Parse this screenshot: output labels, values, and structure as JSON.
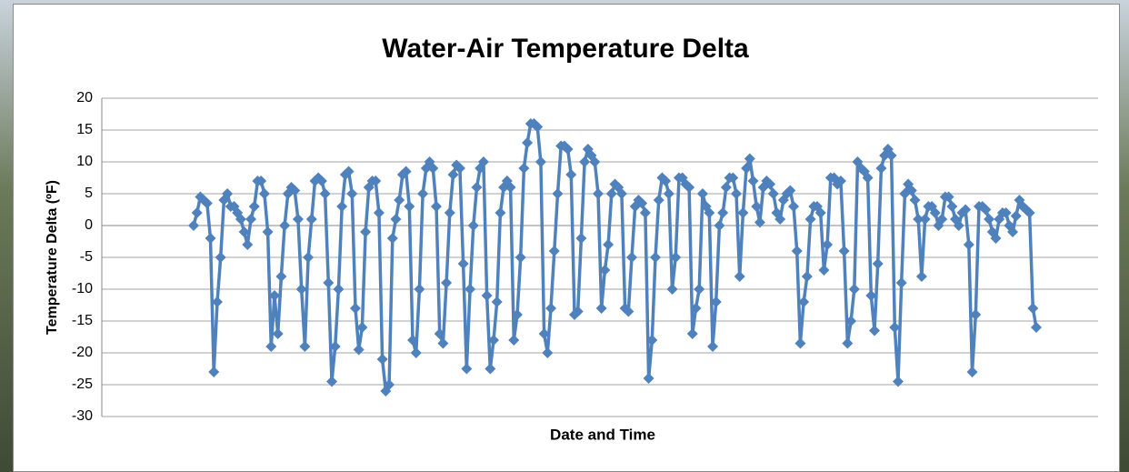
{
  "chart_data": {
    "type": "line",
    "title": "Water-Air Temperature Delta",
    "y_label": "Temperature Delta (ºF)",
    "x_label": "Date and Time",
    "color": "#4f81bd",
    "grid": true,
    "markers": "diamond",
    "ylim": [
      -30,
      20
    ],
    "yticks": [
      20,
      15,
      10,
      5,
      0,
      -5,
      -10,
      -15,
      -20,
      -25,
      -30
    ],
    "values": [
      0,
      2,
      4.5,
      4,
      3.5,
      -2,
      -23,
      -12,
      -5,
      4,
      5,
      3,
      3,
      2,
      1,
      -1,
      -3,
      1,
      3,
      7,
      7,
      5,
      -1,
      -19,
      -11,
      -17,
      -8,
      0,
      5,
      6,
      5.5,
      1,
      -10,
      -19,
      -5,
      1,
      7,
      7.5,
      7,
      5,
      -9,
      -24.5,
      -19,
      -10,
      3,
      8,
      8.5,
      5,
      -13,
      -19.5,
      -16,
      -1,
      6,
      7,
      7,
      2,
      -21,
      -26,
      -25,
      -2,
      1,
      4,
      8,
      8.5,
      3,
      -18,
      -20,
      -10,
      5,
      9,
      10,
      9,
      3,
      -17,
      -18.5,
      -9,
      2,
      8,
      9.5,
      9,
      -6,
      -22.5,
      -10,
      0,
      6,
      9,
      10,
      -11,
      -22.5,
      -18,
      -12,
      2,
      6,
      7,
      6,
      -18,
      -14,
      -5,
      9,
      13,
      16,
      16,
      15.5,
      10,
      -17,
      -20,
      -13,
      -4,
      5,
      12.5,
      12.5,
      12,
      8,
      -14,
      -13.5,
      -2,
      10,
      12,
      11,
      10,
      5,
      -13,
      -7,
      -3,
      5,
      6.5,
      6,
      5,
      -13,
      -13.5,
      -5,
      3,
      4,
      3.5,
      2,
      -24,
      -18,
      -5,
      4,
      7.5,
      7,
      5,
      -10,
      -5,
      7.5,
      7.5,
      6.5,
      6,
      -17,
      -13,
      -10,
      5,
      3,
      2,
      -19,
      -12,
      0,
      2,
      6,
      7.5,
      7.5,
      5,
      -8,
      2,
      9,
      10.5,
      7,
      3,
      0.5,
      6,
      7,
      6.5,
      5,
      2,
      1,
      4,
      5,
      5.5,
      3,
      -4,
      -18.5,
      -12,
      -8,
      1,
      3,
      3,
      2,
      -7,
      -3,
      7.5,
      7.5,
      6.5,
      7,
      -4,
      -18.5,
      -15,
      -10,
      10,
      9,
      8.5,
      7.5,
      -11,
      -16.5,
      -6,
      9,
      11,
      12,
      11,
      -16,
      -24.5,
      -9,
      5,
      6.5,
      5.5,
      4,
      1,
      -8,
      1,
      3,
      3,
      2,
      0,
      1,
      4.5,
      4.5,
      3,
      1,
      0,
      2,
      2.5,
      -3,
      -23,
      -14,
      3,
      3,
      2.5,
      1,
      -1,
      -2,
      1,
      2,
      2,
      0,
      -1,
      1.5,
      4,
      3,
      2.5,
      2,
      -13,
      -16
    ]
  }
}
